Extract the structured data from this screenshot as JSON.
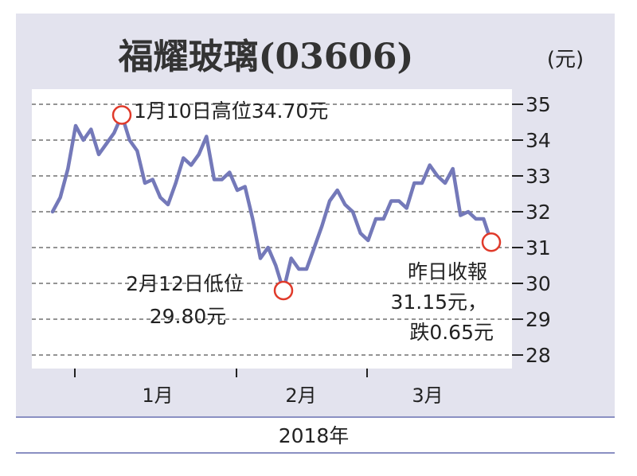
{
  "chart_data": {
    "type": "line",
    "title": "福耀玻璃(03606)",
    "unit": "(元)",
    "xlabel": "2018年",
    "x_ticks": [
      "1月",
      "2月",
      "3月"
    ],
    "ylim": [
      28,
      35
    ],
    "y_ticks": [
      35,
      34,
      33,
      32,
      31,
      30,
      29,
      28
    ],
    "grid": true,
    "series": [
      {
        "values": [
          32.0,
          32.4,
          33.2,
          34.4,
          34.0,
          34.3,
          33.6,
          33.9,
          34.2,
          34.7,
          34.0,
          33.7,
          32.8,
          32.9,
          32.4,
          32.2,
          32.8,
          33.5,
          33.3,
          33.6,
          34.1,
          32.9,
          32.9,
          33.1,
          32.6,
          32.7,
          31.8,
          30.7,
          31.0,
          30.5,
          29.8,
          30.7,
          30.4,
          30.4,
          31.0,
          31.6,
          32.3,
          32.6,
          32.2,
          32.0,
          31.4,
          31.2,
          31.8,
          31.8,
          32.3,
          32.3,
          32.1,
          32.8,
          32.8,
          33.3,
          33.0,
          32.8,
          33.2,
          31.9,
          32.0,
          31.8,
          31.8,
          31.15
        ]
      }
    ],
    "color": "#7479b9",
    "marker_color": "#e03a2a",
    "annotations": [
      {
        "lines": [
          "1月10日高位34.70元"
        ],
        "value": 34.7
      },
      {
        "lines": [
          "2月12日低位",
          "29.80元"
        ],
        "value": 29.8
      },
      {
        "lines": [
          "昨日收報",
          "31.15元，",
          "跌0.65元"
        ],
        "value": 31.15
      }
    ]
  }
}
